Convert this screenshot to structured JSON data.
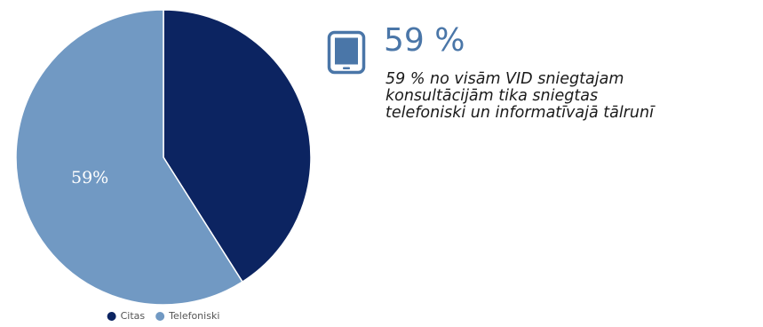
{
  "chart_data": {
    "type": "pie",
    "categories": [
      "Citas",
      "Telefoniski"
    ],
    "values": [
      41,
      59
    ],
    "colors": [
      "#0c2461",
      "#7199c3"
    ],
    "data_labels": [
      "",
      "59%"
    ],
    "legend_position": "bottom-center"
  },
  "highlight": {
    "icon": "tablet-icon",
    "value": "59 %",
    "caption_lines": [
      "59 % no visām VID sniegtajam",
      "konsultācijām  tika sniegtas",
      "telefoniski  un informatīvajā tālrunī"
    ],
    "accent_color": "#4a76a8"
  }
}
